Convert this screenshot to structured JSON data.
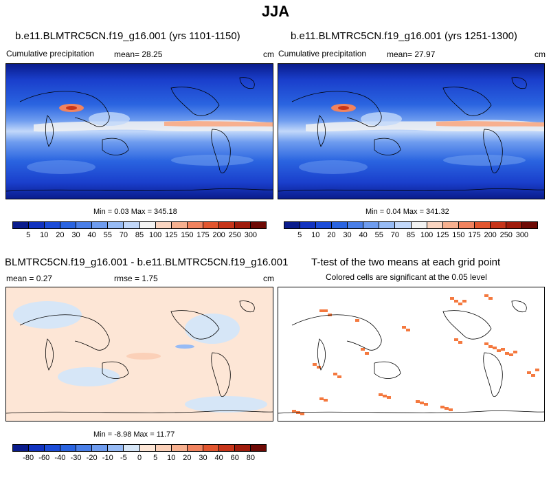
{
  "title": "JJA",
  "chart_data": [
    {
      "type": "heatmap",
      "title": "b.e11.BLMTRC5CN.f19_g16.001 (yrs 1101-1150)",
      "left_label": "Cumulative precipitation",
      "mean_text": "mean=  28.25",
      "units": "cm",
      "minmax_text": "Min =  0.03 Max = 345.18",
      "levels": [
        "5",
        "10",
        "20",
        "30",
        "40",
        "55",
        "70",
        "85",
        "100",
        "125",
        "150",
        "175",
        "200",
        "250",
        "300"
      ],
      "colors": [
        "#0a1c8c",
        "#1233c0",
        "#1c4cd8",
        "#2a64e0",
        "#4a7fe8",
        "#6e9cef",
        "#97bbf5",
        "#c2d8fa",
        "#f2f2f2",
        "#fbd6c2",
        "#f7b08f",
        "#f1835f",
        "#e2562f",
        "#c7351a",
        "#a01c0c",
        "#6e0a05"
      ]
    },
    {
      "type": "heatmap",
      "title": "b.e11.BLMTRC5CN.f19_g16.001 (yrs 1251-1300)",
      "left_label": "Cumulative precipitation",
      "mean_text": "mean=  27.97",
      "units": "cm",
      "minmax_text": "Min =  0.04 Max = 341.32",
      "levels": [
        "5",
        "10",
        "20",
        "30",
        "40",
        "55",
        "70",
        "85",
        "100",
        "125",
        "150",
        "175",
        "200",
        "250",
        "300"
      ],
      "colors": [
        "#0a1c8c",
        "#1233c0",
        "#1c4cd8",
        "#2a64e0",
        "#4a7fe8",
        "#6e9cef",
        "#97bbf5",
        "#c2d8fa",
        "#f2f2f2",
        "#fbd6c2",
        "#f7b08f",
        "#f1835f",
        "#e2562f",
        "#c7351a",
        "#a01c0c",
        "#6e0a05"
      ]
    },
    {
      "type": "heatmap",
      "title": "BLMTRC5CN.f19_g16.001 - b.e11.BLMTRC5CN.f19_g16.001",
      "mean_text": "mean =   0.27",
      "rmse_text": "rmse =   1.75",
      "units": "cm",
      "minmax_text": "Min = -8.98 Max = 11.77",
      "levels": [
        "-80",
        "-60",
        "-40",
        "-30",
        "-20",
        "-10",
        "-5",
        "0",
        "5",
        "10",
        "20",
        "30",
        "40",
        "60",
        "80"
      ],
      "colors": [
        "#0a1c8c",
        "#1233c0",
        "#1c4cd8",
        "#2a64e0",
        "#4a7fe8",
        "#6e9cef",
        "#97bbf5",
        "#d6e6f7",
        "#fde6d6",
        "#fbd0b8",
        "#f7b08f",
        "#f1835f",
        "#e2562f",
        "#c7351a",
        "#a01c0c",
        "#6e0a05"
      ]
    },
    {
      "type": "heatmap",
      "title": "T-test of the two means at each grid point",
      "subtitle": "Colored cells are significant at the 0.05 level",
      "significant_color": "#f4793f"
    }
  ]
}
